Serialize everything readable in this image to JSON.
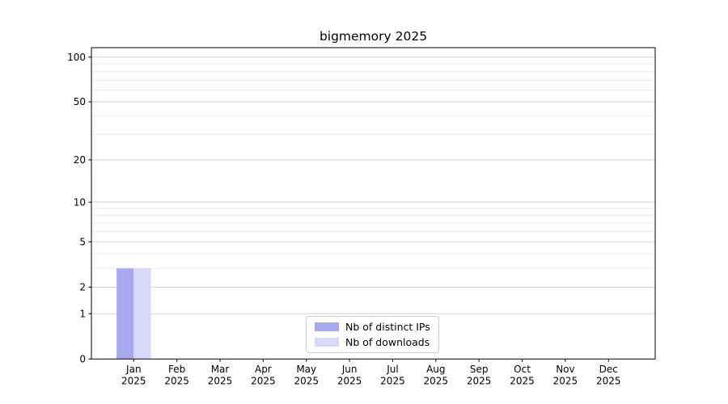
{
  "title": "bigmemory 2025",
  "chart_data": {
    "type": "bar",
    "title": "bigmemory 2025",
    "categories": [
      "Jan",
      "Feb",
      "Mar",
      "Apr",
      "May",
      "Jun",
      "Jul",
      "Aug",
      "Sep",
      "Oct",
      "Nov",
      "Dec"
    ],
    "year": "2025",
    "series": [
      {
        "name": "Nb of distinct IPs",
        "color": "#a8a8ef",
        "values": [
          3,
          0,
          0,
          0,
          0,
          0,
          0,
          0,
          0,
          0,
          0,
          0
        ]
      },
      {
        "name": "Nb of downloads",
        "color": "#d8d8f8",
        "values": [
          3,
          0,
          0,
          0,
          0,
          0,
          0,
          0,
          0,
          0,
          0,
          0
        ]
      }
    ],
    "yticks": [
      0,
      1,
      2,
      5,
      10,
      20,
      50,
      100
    ],
    "minor_yticks": [
      3,
      4,
      6,
      7,
      8,
      9,
      30,
      40,
      60,
      70,
      80,
      90
    ],
    "scale": "log1p",
    "ylim": [
      0,
      116
    ],
    "xlabel": "",
    "ylabel": "",
    "grid": true,
    "legend_position": "lower center"
  },
  "colors": {
    "major_grid": "#d2d2d2",
    "minor_grid": "#eaeaea",
    "axis": "#000000",
    "background": "#ffffff"
  }
}
